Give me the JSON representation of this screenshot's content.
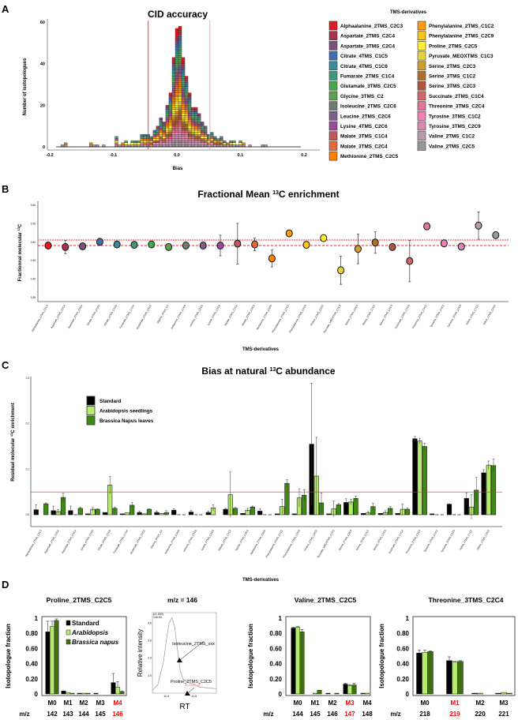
{
  "panels": {
    "a": "A",
    "b": "B",
    "c": "C",
    "d": "D"
  },
  "derivatives": [
    "Alphaalanine_2TMS_C2C3",
    "Aspartate_2TMS_C2C4",
    "Aspartate_3TMS_C2C4",
    "Citrate_4TMS_C1C5",
    "Citrate_4TMS_C1C6",
    "Fumarate_2TMS_C1C4",
    "Glutamate_3TMS_C2C5",
    "Glycine_3TMS_C2",
    "Isoleucine_2TMS_C2C6",
    "Leucine_2TMS_C2C6",
    "Lysine_4TMS_C2C6",
    "Malate_3TMS_C1C4",
    "Malate_3TMS_C2C4",
    "Methionine_2TMS_C2C5",
    "Phenylalanine_2TMS_C1C2",
    "Phenylalanine_2TMS_C2C9",
    "Proline_2TMS_C2C5",
    "Pyruvate_MEOXTMS_C1C3",
    "Serine_2TMS_C2C3",
    "Serine_3TMS_C1C2",
    "Serine_3TMS_C2C3",
    "Succinate_2TMS_C1C4",
    "Threonine_3TMS_C2C4",
    "Tyrosine_3TMS_C1C2",
    "Tyrosine_3TMS_C2C9",
    "Valine_2TMS_C1C2",
    "Valine_2TMS_C2C5"
  ],
  "colors": [
    "#e41a1c",
    "#a8334d",
    "#7b4f7e",
    "#3e6fb0",
    "#3a8a9a",
    "#3f9a7a",
    "#46a84c",
    "#5da04e",
    "#6b7d6b",
    "#7d5f8e",
    "#9a4a9a",
    "#c0585a",
    "#e06a3a",
    "#ff7f00",
    "#ff9a10",
    "#ffc41a",
    "#fff030",
    "#e8d43a",
    "#cfa030",
    "#b0702a",
    "#b0583c",
    "#d0686a",
    "#e07898",
    "#f082b8",
    "#d88ab0",
    "#b89aa8",
    "#999999"
  ],
  "chart_data": [
    {
      "type": "bar",
      "subtype": "stacked-histogram",
      "title": "CID accuracy",
      "xlabel": "Bias",
      "ylabel": "Number of isotopologues",
      "legend_title": "TMS-derivatives",
      "legend_placement": "right",
      "xlim": [
        -0.2,
        0.2
      ],
      "xticks": [
        -0.2,
        -0.1,
        0.0,
        0.1,
        0.2
      ],
      "ylim": [
        0,
        60
      ],
      "yticks": [
        0,
        20,
        40,
        60
      ],
      "bin_width": 0.005,
      "bins": [
        -0.18,
        -0.175,
        -0.135,
        -0.13,
        -0.125,
        -0.115,
        -0.095,
        -0.09,
        -0.085,
        -0.08,
        -0.075,
        -0.07,
        -0.065,
        -0.06,
        -0.055,
        -0.05,
        -0.045,
        -0.04,
        -0.035,
        -0.03,
        -0.025,
        -0.02,
        -0.015,
        -0.01,
        -0.005,
        0.0,
        0.005,
        0.01,
        0.015,
        0.02,
        0.025,
        0.03,
        0.035,
        0.04,
        0.045,
        0.05,
        0.055,
        0.06,
        0.065,
        0.07,
        0.075,
        0.08,
        0.085,
        0.09,
        0.095,
        0.1,
        0.105,
        0.115,
        0.135,
        0.14
      ],
      "counts": [
        1,
        2,
        2,
        1,
        1,
        1,
        5,
        1,
        2,
        3,
        1,
        3,
        3,
        3,
        6,
        6,
        6,
        5,
        8,
        10,
        14,
        12,
        20,
        26,
        43,
        57,
        58,
        43,
        34,
        26,
        19,
        19,
        16,
        12,
        10,
        6,
        7,
        5,
        4,
        5,
        3,
        2,
        3,
        3,
        1,
        3,
        2,
        1,
        1,
        1
      ],
      "vlines": [
        {
          "x": -0.045,
          "color": "#ff0000"
        },
        {
          "x": 0.052,
          "color": "#ff8a8a"
        }
      ]
    },
    {
      "type": "scatter",
      "title": "Fractional Mean 13C enrichment",
      "title_main": "Fractional Mean ",
      "title_sup": "13",
      "title_tail": "C enrichment",
      "xlabel": "TMS-derivatives",
      "ylabel_main": "Fractionnal molecular ",
      "ylabel_sup": "13",
      "ylabel_tail": "C",
      "ylim": [
        0.35,
        0.6
      ],
      "yticks": [
        "0.35",
        "0.40",
        "0.45",
        "0.50",
        "0.55",
        "0.60"
      ],
      "values": [
        0.491,
        0.487,
        0.489,
        0.501,
        0.494,
        0.493,
        0.494,
        0.487,
        0.491,
        0.491,
        0.491,
        0.496,
        0.494,
        0.456,
        0.524,
        0.493,
        0.511,
        0.424,
        0.482,
        0.499,
        0.487,
        0.449,
        0.543,
        0.497,
        0.488,
        0.545,
        0.519
      ],
      "errors": [
        0.003,
        0.018,
        0.008,
        0.004,
        0.005,
        0.004,
        0.004,
        0.004,
        0.004,
        0.004,
        0.028,
        0.055,
        0.017,
        0.023,
        0.004,
        0.005,
        0.004,
        0.038,
        0.04,
        0.029,
        0.004,
        0.056,
        0.003,
        0.004,
        0.006,
        0.037,
        0.004
      ],
      "hlines": [
        {
          "y": 0.491,
          "style": "dashed",
          "color": "#e8282b"
        },
        {
          "y": 0.506,
          "style": "dotted",
          "color": "#ff9a9a"
        }
      ]
    },
    {
      "type": "bar",
      "subtype": "grouped",
      "title_main": "Bias at natural ",
      "title_sup": "13",
      "title_tail": "C abundance",
      "xlabel": "TMS-derivatives",
      "ylabel_main": "Residual molecular ",
      "ylabel_sup": "13",
      "ylabel_tail": "C enrichment",
      "ylim": [
        -0.025,
        0.3
      ],
      "yticks": [
        "0.0",
        "0.1",
        "0.2",
        "0.3"
      ],
      "legend_placement": "top-left",
      "nd_label": "nd",
      "hline": {
        "y": 0.05,
        "color": "#e8282b"
      },
      "series": [
        {
          "name": "Standard",
          "color": "#000000",
          "values": [
            0.011,
            0.009,
            0.009,
            0.002,
            0.005,
            0.002,
            0.005,
            0.005,
            0.01,
            0.006,
            0.005,
            0.012,
            0.003,
            0.008,
            0.002,
            0.002,
            0.155,
            0.002,
            0.027,
            0.003,
            0.003,
            0.003,
            0.167,
            0.002,
            0.023,
            0.036,
            0.092
          ],
          "errors": [
            0.011,
            0.01,
            0.01,
            0,
            0,
            0,
            0.003,
            0.003,
            0.003,
            0.004,
            0.003,
            0.002,
            0,
            0.005,
            0,
            0,
            0.134,
            0,
            0.008,
            0,
            0,
            0,
            0.005,
            0,
            0.001,
            0.012,
            0.007
          ]
        },
        {
          "name": "Arabidopsis seedlings",
          "color": "#b5ec6c",
          "values": [
            0,
            0.007,
            null,
            0.012,
            0.065,
            0.004,
            0.002,
            0.003,
            null,
            null,
            0.015,
            0.044,
            0.01,
            null,
            0.018,
            0.037,
            0.085,
            0.013,
            0.028,
            0.004,
            0.005,
            0.012,
            0.162,
            null,
            null,
            0.017,
            0.109
          ],
          "errors": [
            0,
            0.004,
            0,
            0.004,
            0.019,
            0,
            0,
            0,
            0,
            0,
            0.007,
            0.05,
            0.004,
            0,
            0.016,
            0.02,
            0.085,
            0.017,
            0.006,
            0.003,
            0.004,
            0.012,
            0.006,
            0,
            0,
            0.027,
            0.009
          ]
        },
        {
          "name": "Brassica Napus leaves",
          "color": "#3f8a12",
          "values": [
            0.024,
            0.038,
            0.014,
            0.012,
            0.014,
            0.021,
            0.012,
            0.005,
            null,
            null,
            0,
            0.014,
            0.017,
            null,
            0.069,
            0.043,
            0.026,
            0.022,
            0.036,
            0.018,
            0.014,
            0.012,
            0.15,
            null,
            null,
            0.054,
            0.108
          ],
          "errors": [
            0.002,
            0.009,
            0.003,
            0.001,
            0.003,
            0.006,
            0.001,
            0.004,
            0,
            0,
            0,
            0.002,
            0.002,
            0,
            0.008,
            0.012,
            0.022,
            0.003,
            0.005,
            0.007,
            0.004,
            0.003,
            0.007,
            0,
            0,
            0.028,
            0.014
          ]
        }
      ]
    },
    {
      "type": "bar",
      "subtype": "grouped",
      "title": "Proline_2TMS_C2C5",
      "ylabel": "Isotopologue fraction",
      "ylim": [
        0,
        1
      ],
      "yticks": [
        "0",
        "0.20",
        "0.40",
        "0.60",
        "0.80",
        "1"
      ],
      "mz_label": "m/z",
      "categories": [
        "M0",
        "M1",
        "M2",
        "M3",
        "M4"
      ],
      "mz": [
        "142",
        "143",
        "144",
        "145",
        "146"
      ],
      "highlight_index": 4,
      "legend": [
        "Standard",
        "Arabidopsis",
        "Brassica napus"
      ],
      "series": [
        {
          "name": "Standard",
          "values": [
            0.82,
            0.04,
            0.01,
            0.01,
            0.15
          ],
          "errors": [
            0.14,
            0,
            0,
            0,
            0.12
          ]
        },
        {
          "name": "Arabidopsis",
          "values": [
            0.89,
            0.02,
            0.01,
            0.0,
            0.09
          ],
          "errors": [
            0.07,
            0,
            0,
            0,
            0.07
          ]
        },
        {
          "name": "Brassica napus",
          "values": [
            0.97,
            0.01,
            0.01,
            0.0,
            0.03
          ],
          "errors": [
            0.02,
            0,
            0,
            0,
            0.01
          ]
        }
      ]
    },
    {
      "type": "line",
      "title": "m/z = 146",
      "xlabel": "RT",
      "ylabel": "Relative intensity",
      "scale_note": "(x1,000)",
      "mass_note": "146.00",
      "xlim": [
        11.35,
        11.58
      ],
      "xticks": [
        "11.4",
        "11.5"
      ],
      "ylim": [
        0,
        4.6
      ],
      "yticks": [
        "1.0",
        "2.0",
        "3.0",
        "4.0"
      ],
      "x": [
        11.35,
        11.37,
        11.39,
        11.4,
        11.41,
        11.42,
        11.43,
        11.44,
        11.45,
        11.46,
        11.48,
        11.5,
        11.52,
        11.55,
        11.58
      ],
      "y": [
        0.15,
        0.5,
        1.8,
        3.0,
        4.0,
        4.3,
        3.8,
        2.5,
        1.3,
        0.8,
        0.6,
        0.5,
        0.35,
        0.3,
        0.25
      ],
      "annotations": [
        {
          "text": "Isoleucine_2TMS_xxx",
          "x": 11.44,
          "y": 2.6
        },
        {
          "text": "Proline_2TMS_C2C5",
          "x": 11.47,
          "y": 0.7
        }
      ]
    },
    {
      "type": "bar",
      "subtype": "grouped",
      "title": "Valine_2TMS_C2C5",
      "ylabel": "Isotopologue fraction",
      "ylim": [
        0,
        1
      ],
      "yticks": [
        "0",
        "0.20",
        "0.40",
        "0.60",
        "0.80",
        "1"
      ],
      "mz_label": "m/z",
      "categories": [
        "M0",
        "M1",
        "M2",
        "M3",
        "M4"
      ],
      "mz": [
        "144",
        "145",
        "146",
        "147",
        "148"
      ],
      "highlight_index": 3,
      "series": [
        {
          "name": "Standard",
          "values": [
            0.87,
            0.0,
            0.01,
            0.13,
            0.01
          ],
          "errors": [
            0.01,
            0,
            0,
            0.01,
            0
          ]
        },
        {
          "name": "Arabidopsis",
          "values": [
            0.88,
            0.01,
            0.0,
            0.11,
            0.01
          ],
          "errors": [
            0.01,
            0,
            0,
            0.01,
            0
          ]
        },
        {
          "name": "Brassica napus",
          "values": [
            0.82,
            0.05,
            0.01,
            0.12,
            0.0
          ],
          "errors": [
            0.03,
            0,
            0,
            0.02,
            0
          ]
        }
      ]
    },
    {
      "type": "bar",
      "subtype": "grouped",
      "title": "Threonine_3TMS_C2C4",
      "ylabel": "Isotopologue fraction",
      "ylim": [
        0,
        1
      ],
      "yticks": [
        "0",
        "0.20",
        "0.40",
        "0.60",
        "0.80",
        "1"
      ],
      "mz_label": "m/z",
      "categories": [
        "M0",
        "M1",
        "M2",
        "M3"
      ],
      "mz": [
        "218",
        "219",
        "220",
        "221"
      ],
      "highlight_index": 1,
      "series": [
        {
          "name": "Standard",
          "values": [
            0.54,
            0.44,
            0.01,
            0.01
          ],
          "errors": [
            0.04,
            0.05,
            0,
            0
          ]
        },
        {
          "name": "Arabidopsis",
          "values": [
            0.55,
            0.42,
            0.01,
            0.02
          ],
          "errors": [
            0.03,
            0.01,
            0,
            0
          ]
        },
        {
          "name": "Brassica napus",
          "values": [
            0.56,
            0.43,
            0.0,
            0.01
          ],
          "errors": [
            0.01,
            0.01,
            0,
            0
          ]
        }
      ]
    }
  ]
}
